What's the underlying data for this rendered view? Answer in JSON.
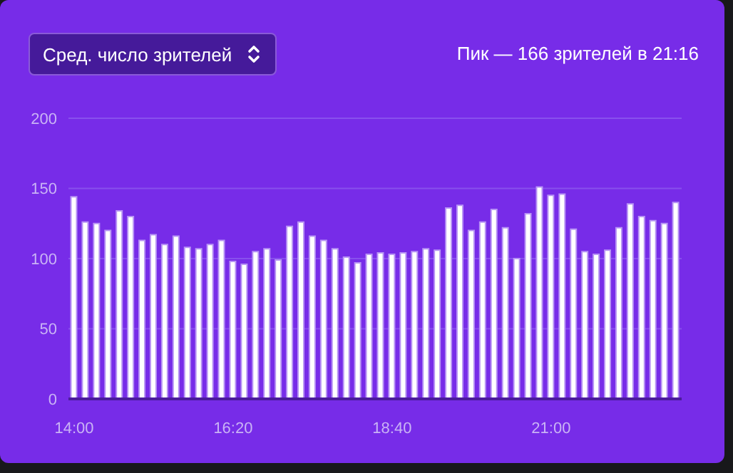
{
  "chart_data": {
    "type": "bar",
    "title": "Пик — 166 зрителей в 21:16",
    "subtitle": "Сред. число зрителей",
    "categories": [
      "14:00",
      null,
      null,
      null,
      null,
      null,
      null,
      null,
      null,
      null,
      null,
      null,
      null,
      null,
      "16:20",
      null,
      null,
      null,
      null,
      null,
      null,
      null,
      null,
      null,
      null,
      null,
      null,
      null,
      "18:40",
      null,
      null,
      null,
      null,
      null,
      null,
      null,
      null,
      null,
      null,
      null,
      null,
      null,
      "21:00",
      null,
      null,
      null,
      null,
      null,
      null,
      null,
      null,
      null,
      null,
      null
    ],
    "values": [
      144,
      126,
      125,
      120,
      134,
      130,
      113,
      117,
      110,
      116,
      108,
      107,
      110,
      113,
      98,
      96,
      105,
      107,
      99,
      123,
      126,
      116,
      113,
      107,
      101,
      97,
      103,
      104,
      103,
      104,
      105,
      107,
      106,
      136,
      138,
      120,
      126,
      135,
      122,
      100,
      132,
      151,
      145,
      146,
      121,
      105,
      103,
      106,
      122,
      139,
      130,
      127,
      125,
      140
    ],
    "color": "#ffffff",
    "ylim": [
      0,
      200
    ],
    "yticks": [
      0,
      50,
      100,
      150,
      200
    ],
    "grid": "y"
  }
}
